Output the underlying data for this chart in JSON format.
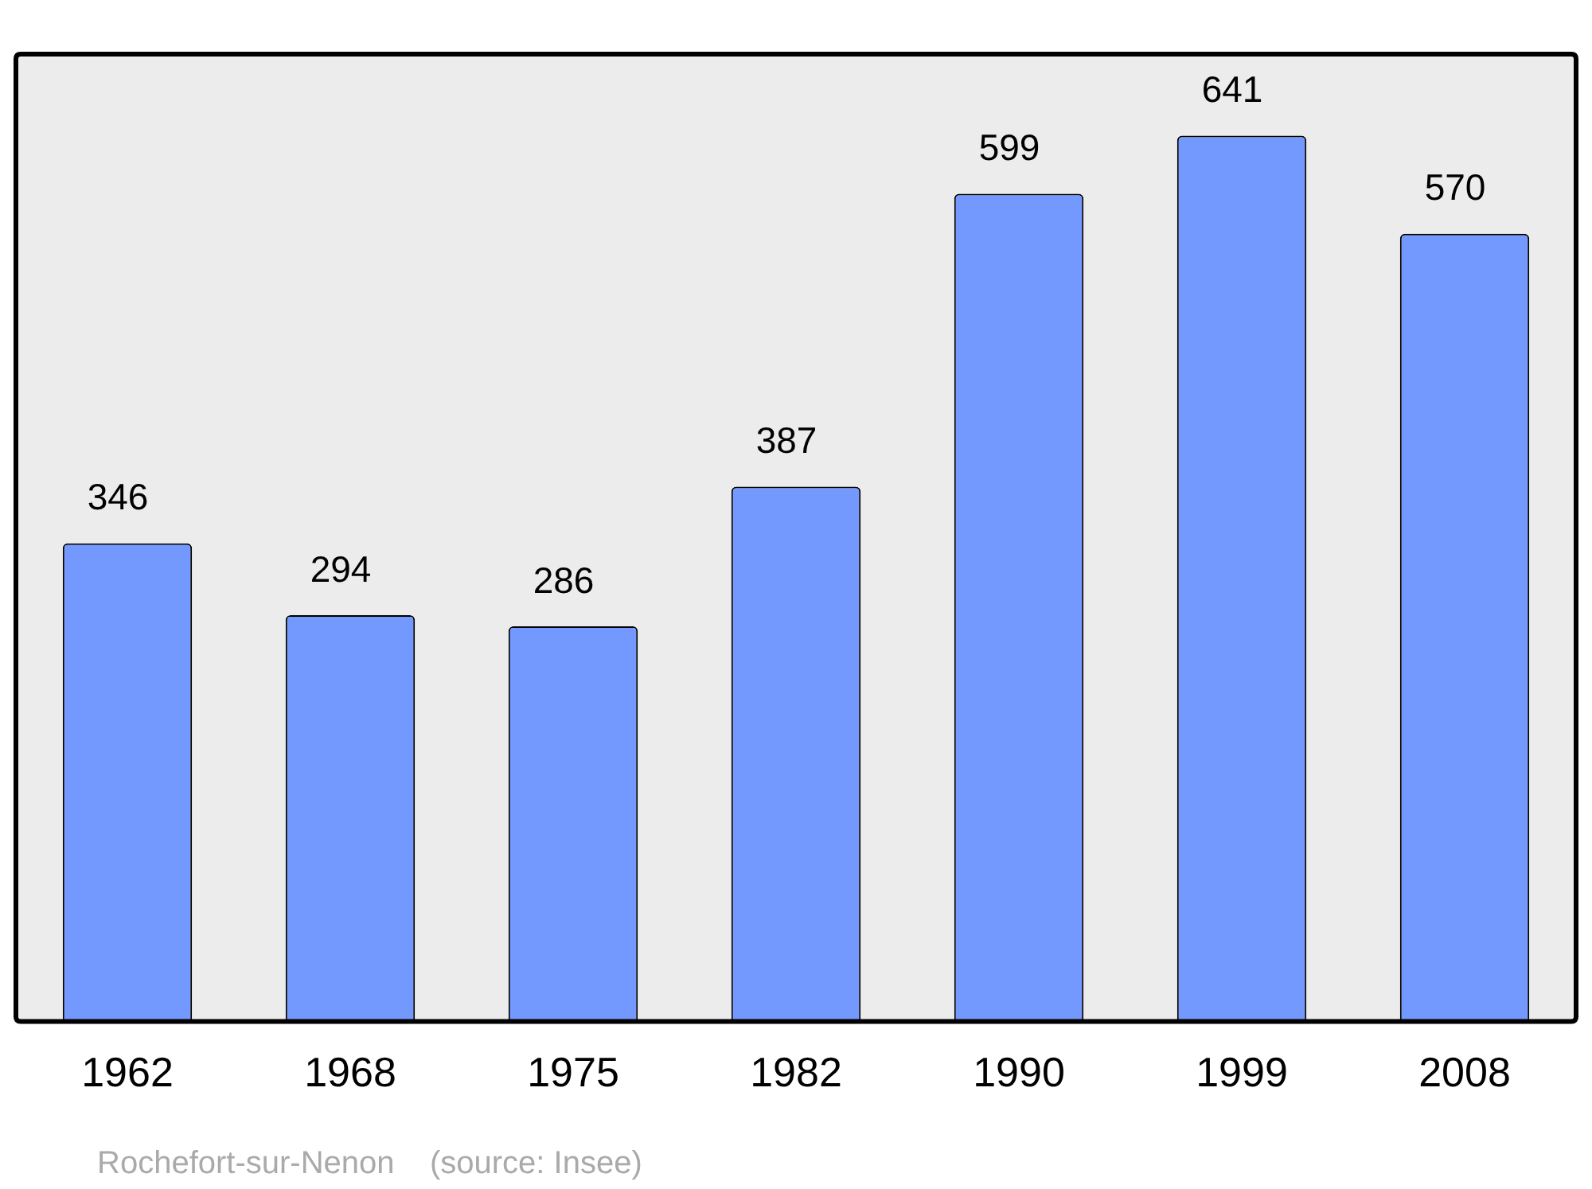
{
  "chart_data": {
    "type": "bar",
    "categories": [
      "1962",
      "1968",
      "1975",
      "1982",
      "1990",
      "1999",
      "2008"
    ],
    "values": [
      346,
      294,
      286,
      387,
      599,
      641,
      570
    ],
    "color": "#7399ff",
    "data_labels": true,
    "grid": false,
    "legend": false,
    "tick_labels": "x",
    "annotations": [
      "Rochefort-sur-Nenon    (source: Insee)"
    ]
  }
}
